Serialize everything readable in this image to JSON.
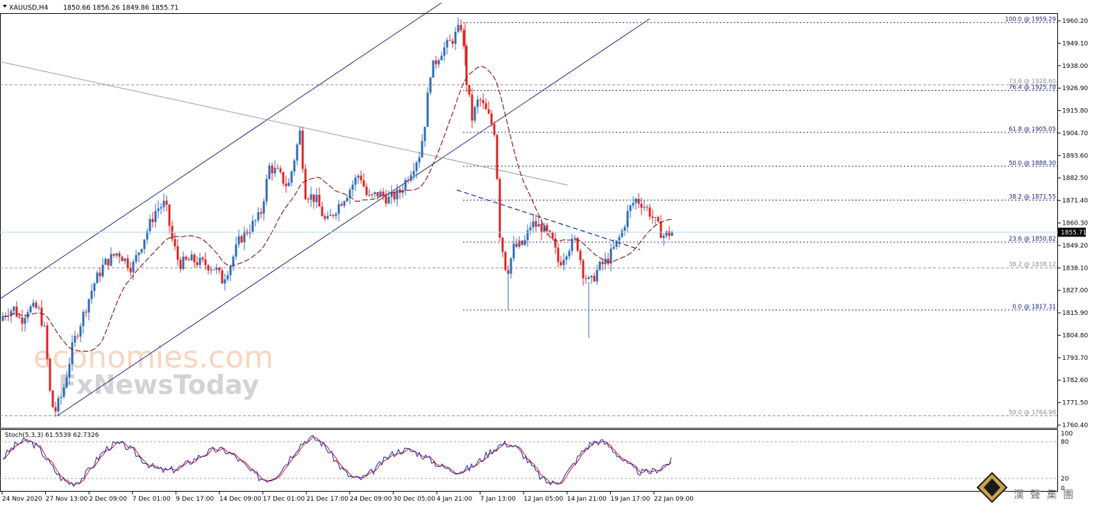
{
  "header": {
    "symbol": "XAUUSD,H4",
    "ohlc": "1850.66 1856.26 1849.86 1855.71"
  },
  "indicator": {
    "label": "Stoch(5,3,3) 61.5539 62.7326",
    "levels": [
      "100",
      "80",
      "20",
      "0"
    ]
  },
  "watermark": {
    "line1": "economies.com",
    "line2": "FxNewsToday"
  },
  "brand": {
    "chinese": "漢 聲 集 團"
  },
  "chart_data": {
    "type": "candlestick",
    "symbol": "XAUUSD",
    "timeframe": "H4",
    "current_price": "1855.71",
    "ylim": [
      1760.4,
      1960.2
    ],
    "y_ticks": [
      "1960.20",
      "1949.10",
      "1938.00",
      "1926.90",
      "1915.80",
      "1904.70",
      "1893.60",
      "1882.50",
      "1871.40",
      "1860.30",
      "1849.20",
      "1838.10",
      "1827.00",
      "1815.90",
      "1804.80",
      "1793.70",
      "1782.60",
      "1771.50",
      "1760.40"
    ],
    "x_ticks": [
      "24 Nov 2020",
      "27 Nov 13:00",
      "2 Dec 09:00",
      "7 Dec 01:00",
      "9 Dec 17:00",
      "14 Dec 09:00",
      "17 Dec 01:00",
      "21 Dec 17:00",
      "24 Dec 09:00",
      "30 Dec 05:00",
      "4 Jan 21:00",
      "7 Jan 13:00",
      "12 Jan 05:00",
      "14 Jan 21:00",
      "19 Jan 17:00",
      "22 Jan 09:00"
    ],
    "fib_levels": [
      {
        "label": "100.0 @ 1959.29",
        "value": 1959.29,
        "color": "#1a237e",
        "style": "dotted"
      },
      {
        "label": "73.6 @ 1928.60",
        "value": 1928.6,
        "color": "#8c8c8c",
        "style": "dashed"
      },
      {
        "label": "76.4 @ 1925.78",
        "value": 1925.78,
        "color": "#1a237e",
        "style": "dotted"
      },
      {
        "label": "61.8 @ 1905.05",
        "value": 1905.05,
        "color": "#1a237e",
        "style": "dotted"
      },
      {
        "label": "50.0 @ 1888.30",
        "value": 1888.3,
        "color": "#1a237e",
        "style": "dotted"
      },
      {
        "label": "38.2 @ 1871.55",
        "value": 1871.55,
        "color": "#1a237e",
        "style": "dotted"
      },
      {
        "label": "23.6 @ 1850.82",
        "value": 1850.82,
        "color": "#1a237e",
        "style": "dotted"
      },
      {
        "label": "38.2 @ 1838.12",
        "value": 1838.12,
        "color": "#8c8c8c",
        "style": "dashed"
      },
      {
        "label": "0.0 @ 1817.31",
        "value": 1817.31,
        "color": "#1a237e",
        "style": "dotted"
      },
      {
        "label": "50.0 @ 1764.98",
        "value": 1764.98,
        "color": "#8c8c8c",
        "style": "dashed"
      }
    ],
    "bull_color": "#2a6bb8",
    "bear_color": "#e02020",
    "ma_color": "#8b1a1a",
    "stoch_k_color": "#1f2fb5",
    "stoch_d_color": "#e02020"
  }
}
